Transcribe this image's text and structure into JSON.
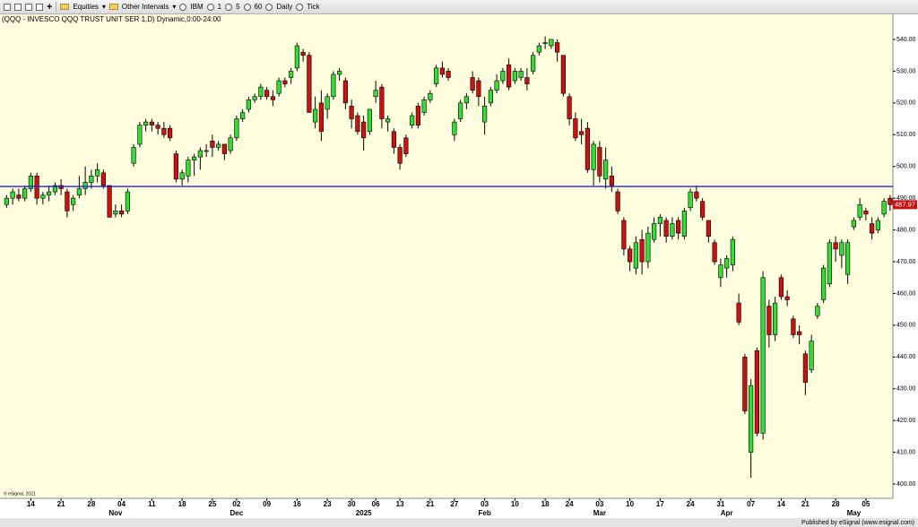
{
  "toolbar": {
    "items": [
      "Equities",
      "Other Intervals",
      "IBM",
      "1",
      "5",
      "60",
      "Daily",
      "Tick"
    ]
  },
  "footer": {
    "copyright": "© eSignal, 2021",
    "published": "Published by eSignal (www.esignal.com)"
  },
  "chart_data": {
    "type": "candlestick",
    "title": "(QQQ - INVESCO QQQ TRUST UNIT SER 1,D) Dynamic,0:00-24:00",
    "categories": [
      null,
      null,
      null,
      null,
      "14",
      null,
      null,
      null,
      null,
      "21",
      null,
      null,
      null,
      null,
      "28",
      null,
      null,
      null,
      null,
      "04",
      null,
      null,
      null,
      null,
      "11",
      null,
      null,
      null,
      null,
      "18",
      null,
      null,
      null,
      null,
      "25",
      null,
      null,
      null,
      "02",
      null,
      null,
      null,
      null,
      "09",
      null,
      null,
      null,
      null,
      "16",
      null,
      null,
      null,
      null,
      "23",
      null,
      null,
      null,
      "30",
      null,
      null,
      null,
      "06",
      null,
      null,
      null,
      "13",
      null,
      null,
      null,
      null,
      "21",
      null,
      null,
      null,
      "27",
      null,
      null,
      null,
      null,
      "03",
      null,
      null,
      null,
      null,
      "10",
      null,
      null,
      null,
      null,
      "18",
      null,
      null,
      null,
      "24",
      null,
      null,
      null,
      null,
      "03",
      null,
      null,
      null,
      null,
      "10",
      null,
      null,
      null,
      null,
      "17",
      null,
      null,
      null,
      null,
      "24",
      null,
      null,
      null,
      null,
      "31",
      null,
      null,
      null,
      null,
      "07",
      null,
      null,
      null,
      null,
      "14",
      null,
      null,
      null,
      "21",
      null,
      null,
      null,
      null,
      "28",
      null,
      null,
      null,
      null,
      "05",
      null,
      null,
      null,
      null
    ],
    "month_labels": [
      null,
      null,
      null,
      null,
      null,
      null,
      null,
      null,
      null,
      null,
      null,
      null,
      null,
      null,
      null,
      null,
      null,
      null,
      "Nov",
      null,
      null,
      null,
      null,
      null,
      null,
      null,
      null,
      null,
      null,
      null,
      null,
      null,
      null,
      null,
      null,
      null,
      null,
      null,
      "Dec",
      null,
      null,
      null,
      null,
      null,
      null,
      null,
      null,
      null,
      null,
      null,
      null,
      null,
      null,
      null,
      null,
      null,
      null,
      null,
      null,
      "2025",
      null,
      null,
      null,
      null,
      null,
      null,
      null,
      null,
      null,
      null,
      null,
      null,
      null,
      null,
      null,
      null,
      null,
      null,
      null,
      "Feb",
      null,
      null,
      null,
      null,
      null,
      null,
      null,
      null,
      null,
      null,
      null,
      null,
      null,
      null,
      null,
      null,
      null,
      null,
      "Mar",
      null,
      null,
      null,
      null,
      null,
      null,
      null,
      null,
      null,
      null,
      null,
      null,
      null,
      null,
      null,
      null,
      null,
      null,
      null,
      null,
      "Apr",
      null,
      null,
      null,
      null,
      null,
      null,
      null,
      null,
      null,
      null,
      null,
      null,
      null,
      null,
      null,
      null,
      null,
      null,
      null,
      null,
      "May",
      null,
      null,
      null,
      null,
      null,
      null
    ],
    "open": [
      488,
      490,
      491,
      490,
      493,
      497,
      490,
      491,
      492,
      494,
      492,
      488,
      491,
      493,
      495,
      497,
      498,
      494,
      485,
      486,
      486,
      501,
      507,
      513,
      514,
      513,
      512,
      512,
      504,
      496,
      497,
      502,
      503,
      505,
      508,
      506,
      507,
      505,
      509,
      515,
      518,
      521,
      522,
      524,
      522,
      523,
      527,
      528,
      531,
      536,
      535,
      514,
      520,
      518,
      522,
      529,
      527,
      519,
      516,
      514,
      511,
      522,
      525,
      514,
      511,
      506,
      509,
      513,
      519,
      517,
      521,
      526,
      531,
      530,
      510,
      515,
      520,
      528,
      527,
      514,
      520,
      524,
      527,
      532,
      527,
      528,
      528,
      530,
      536,
      539,
      538,
      539,
      535,
      522,
      515,
      511,
      512,
      499,
      506,
      496,
      497,
      492,
      483,
      474,
      468,
      477,
      470,
      477,
      482,
      483,
      478,
      483,
      478,
      487,
      492,
      489,
      483,
      476,
      465,
      468,
      469,
      457,
      440,
      410,
      442,
      416,
      456,
      447,
      465,
      459,
      452,
      448,
      441,
      436,
      453,
      458,
      463,
      476,
      472,
      466,
      481,
      484,
      486,
      482,
      480,
      485,
      490
    ],
    "high": [
      491,
      493,
      493,
      494,
      498,
      498,
      492,
      494,
      495,
      496,
      493,
      491,
      497,
      500,
      499,
      501,
      499,
      494,
      488,
      488,
      493,
      507,
      514,
      515,
      515,
      514,
      514,
      513,
      505,
      499,
      503,
      504,
      506,
      507,
      510,
      508,
      507,
      510,
      516,
      518,
      522,
      523,
      526,
      525,
      524,
      528,
      528,
      531,
      539,
      537,
      536,
      522,
      524,
      523,
      530,
      531,
      528,
      521,
      517,
      516,
      518,
      527,
      526,
      516,
      512,
      507,
      510,
      517,
      520,
      522,
      524,
      532,
      533,
      531,
      515,
      521,
      523,
      530,
      528,
      522,
      525,
      529,
      531,
      534,
      531,
      531,
      531,
      536,
      539,
      541,
      540,
      540,
      535,
      523,
      517,
      515,
      514,
      508,
      508,
      506,
      500,
      493,
      484,
      475,
      478,
      480,
      481,
      484,
      485,
      484,
      484,
      484,
      487,
      493,
      494,
      490,
      483,
      477,
      471,
      472,
      478,
      460,
      441,
      433,
      443,
      467,
      458,
      459,
      466,
      461,
      453,
      450,
      442,
      447,
      457,
      469,
      477,
      478,
      477,
      477,
      484,
      490,
      487,
      484,
      484,
      490,
      491
    ],
    "low": [
      487,
      488,
      489,
      489,
      492,
      488,
      488,
      489,
      491,
      491,
      484,
      486,
      490,
      491,
      493,
      495,
      493,
      484,
      484,
      484,
      485,
      500,
      506,
      511,
      511,
      510,
      509,
      508,
      495,
      494,
      495,
      497,
      499,
      503,
      503,
      505,
      502,
      504,
      508,
      514,
      517,
      520,
      521,
      521,
      519,
      522,
      525,
      526,
      530,
      533,
      517,
      512,
      508,
      515,
      521,
      527,
      518,
      512,
      510,
      505,
      510,
      520,
      512,
      511,
      504,
      499,
      503,
      512,
      512,
      516,
      520,
      525,
      528,
      527,
      508,
      514,
      518,
      523,
      519,
      510,
      519,
      523,
      526,
      524,
      526,
      527,
      524,
      529,
      535,
      537,
      537,
      533,
      522,
      513,
      508,
      507,
      498,
      494,
      495,
      493,
      492,
      485,
      472,
      467,
      466,
      466,
      468,
      476,
      478,
      476,
      477,
      477,
      477,
      486,
      489,
      483,
      476,
      469,
      462,
      465,
      467,
      450,
      422,
      402,
      415,
      414,
      443,
      445,
      458,
      456,
      446,
      444,
      428,
      435,
      452,
      457,
      462,
      470,
      468,
      463,
      480,
      483,
      483,
      477,
      479,
      484,
      486
    ],
    "close": [
      490,
      492,
      490,
      493,
      497,
      490,
      491,
      492,
      494,
      493,
      486,
      490,
      493,
      495,
      497,
      499,
      494,
      484,
      486,
      485,
      492,
      506,
      513,
      514,
      513,
      512,
      510,
      509,
      496,
      498,
      502,
      503,
      505,
      505,
      506,
      507,
      504,
      509,
      515,
      517,
      521,
      522,
      525,
      522,
      521,
      527,
      526,
      530,
      538,
      535,
      517,
      518,
      511,
      522,
      529,
      530,
      520,
      515,
      511,
      509,
      518,
      524,
      515,
      515,
      506,
      501,
      504,
      516,
      513,
      521,
      523,
      531,
      529,
      528,
      514,
      520,
      522,
      524,
      522,
      519,
      524,
      527,
      530,
      525,
      530,
      530,
      526,
      535,
      538,
      539,
      540,
      536,
      523,
      515,
      509,
      510,
      499,
      507,
      497,
      502,
      494,
      486,
      474,
      470,
      476,
      470,
      479,
      482,
      484,
      478,
      482,
      479,
      486,
      492,
      490,
      484,
      478,
      470,
      469,
      471,
      477,
      451,
      423,
      431,
      416,
      465,
      447,
      457,
      459,
      458,
      447,
      447,
      432,
      445,
      456,
      468,
      476,
      474,
      476,
      476,
      483,
      488,
      485,
      479,
      483,
      489,
      487.97
    ],
    "ylim": [
      395.5,
      547.9
    ],
    "yticks": [
      {
        "value": 400,
        "label": "400.00"
      },
      {
        "value": 410,
        "label": "410.00"
      },
      {
        "value": 420,
        "label": "420.00"
      },
      {
        "value": 430,
        "label": "430.00"
      },
      {
        "value": 440,
        "label": "440.00"
      },
      {
        "value": 450,
        "label": "450.00"
      },
      {
        "value": 460,
        "label": "460.00"
      },
      {
        "value": 470,
        "label": "470.00"
      },
      {
        "value": 480,
        "label": "480.00"
      },
      {
        "value": 490,
        "label": "490.00"
      },
      {
        "value": 500,
        "label": "500.00"
      },
      {
        "value": 510,
        "label": "510.00"
      },
      {
        "value": 520,
        "label": "520.00"
      },
      {
        "value": 530,
        "label": "530.00"
      },
      {
        "value": 540,
        "label": "540.00"
      }
    ],
    "hline": 493.7,
    "hline_color": "#2020d0",
    "up_color": "#33dd33",
    "down_color": "#cc1111",
    "background": "#ffffe0"
  }
}
